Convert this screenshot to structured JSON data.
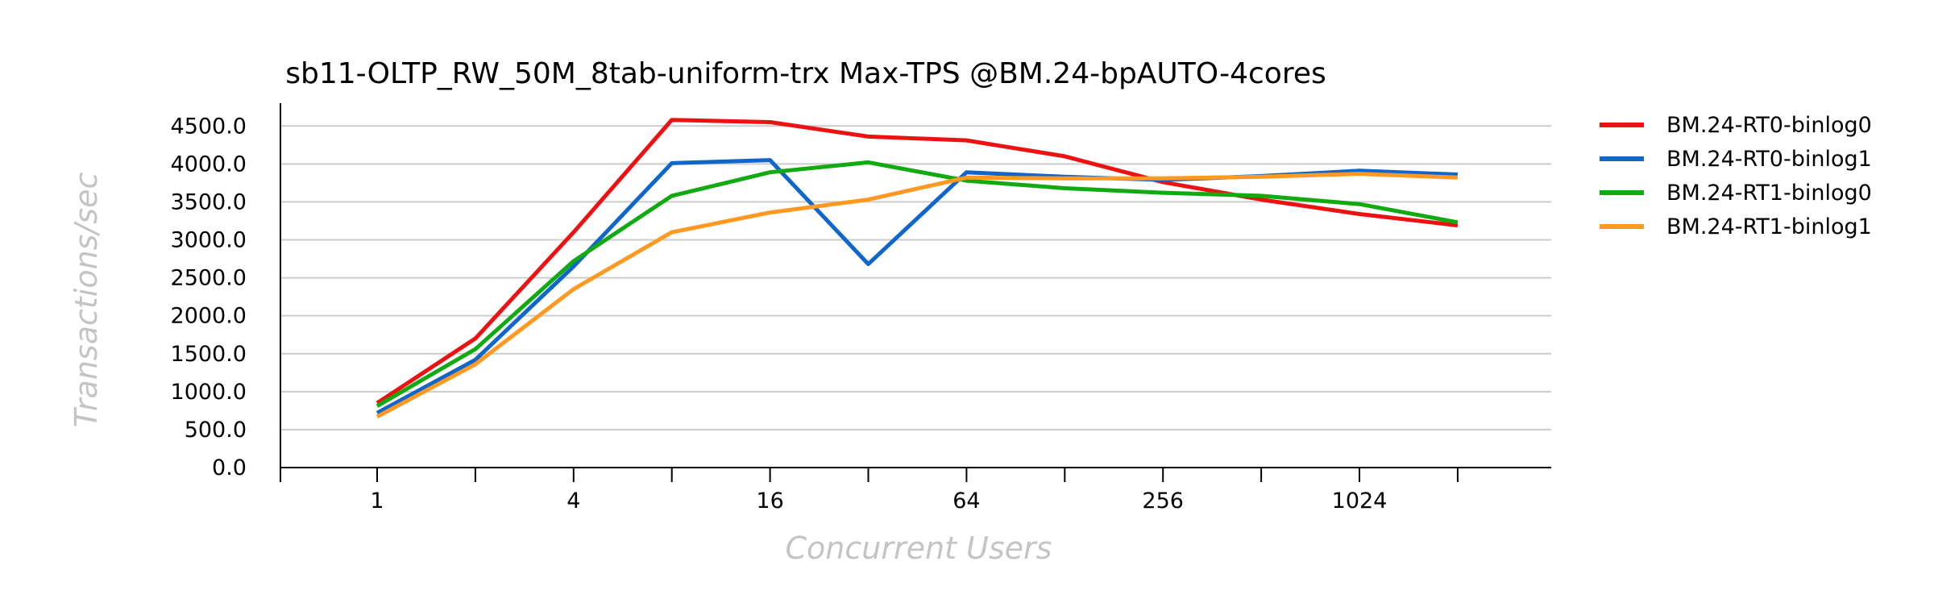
{
  "chart_data": {
    "type": "line",
    "title": "sb11-OLTP_RW_50M_8tab-uniform-trx Max-TPS @BM.24-bpAUTO-4cores",
    "xlabel": "Concurrent Users",
    "ylabel": "Transactions/sec",
    "x": [
      1,
      2,
      4,
      8,
      16,
      32,
      64,
      128,
      256,
      512,
      1024,
      2048
    ],
    "x_scale": "log2",
    "x_tick_labels": [
      "1",
      "4",
      "16",
      "64",
      "256",
      "1024"
    ],
    "y_tick_labels": [
      "0.0",
      "500.0",
      "1000.0",
      "1500.0",
      "2000.0",
      "2500.0",
      "3000.0",
      "3500.0",
      "4000.0",
      "4500.0"
    ],
    "ylim": [
      0,
      4800
    ],
    "grid": true,
    "legend_position": "right",
    "series": [
      {
        "name": "BM.24-RT0-binlog0",
        "color": "#ee1111",
        "values": [
          850,
          1700,
          3100,
          4580,
          4550,
          4360,
          4310,
          4100,
          3760,
          3530,
          3340,
          3190
        ]
      },
      {
        "name": "BM.24-RT0-binlog1",
        "color": "#1166cc",
        "values": [
          720,
          1420,
          2650,
          4010,
          4050,
          2680,
          3890,
          3830,
          3790,
          3840,
          3910,
          3860
        ]
      },
      {
        "name": "BM.24-RT1-binlog0",
        "color": "#11aa11",
        "values": [
          810,
          1560,
          2720,
          3580,
          3890,
          4020,
          3780,
          3680,
          3620,
          3580,
          3470,
          3230
        ]
      },
      {
        "name": "BM.24-RT1-binlog1",
        "color": "#ff9922",
        "values": [
          670,
          1360,
          2350,
          3100,
          3360,
          3530,
          3820,
          3810,
          3810,
          3830,
          3870,
          3820
        ]
      }
    ]
  }
}
